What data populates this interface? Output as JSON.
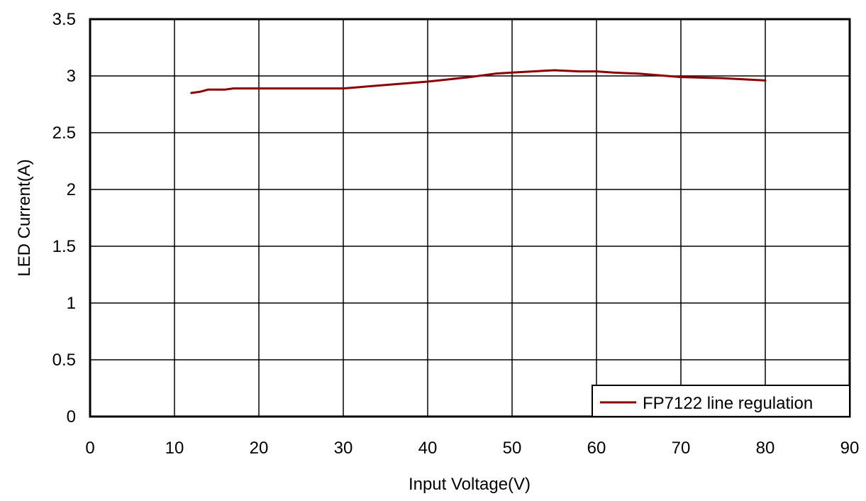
{
  "chart_data": {
    "type": "line",
    "xlabel": "Input Voltage(V)",
    "ylabel": "LED Current(A)",
    "xlim": [
      0,
      90
    ],
    "ylim": [
      0,
      3.5
    ],
    "x_ticks": [
      "0",
      "10",
      "20",
      "30",
      "40",
      "50",
      "60",
      "70",
      "80",
      "90"
    ],
    "y_ticks": [
      "0",
      "0.5",
      "1",
      "1.5",
      "2",
      "2.5",
      "3",
      "3.5"
    ],
    "grid": true,
    "legend_position": "bottom-right",
    "series": [
      {
        "name": "FP7122 line regulation",
        "color": "#8b0000",
        "x": [
          12,
          13,
          14,
          16,
          17,
          20,
          25,
          30,
          35,
          40,
          45,
          48,
          50,
          55,
          58,
          60,
          62,
          65,
          70,
          75,
          80
        ],
        "y": [
          2.85,
          2.86,
          2.88,
          2.88,
          2.89,
          2.89,
          2.89,
          2.89,
          2.92,
          2.95,
          2.99,
          3.02,
          3.03,
          3.05,
          3.04,
          3.04,
          3.03,
          3.02,
          2.99,
          2.98,
          2.96
        ]
      }
    ]
  }
}
